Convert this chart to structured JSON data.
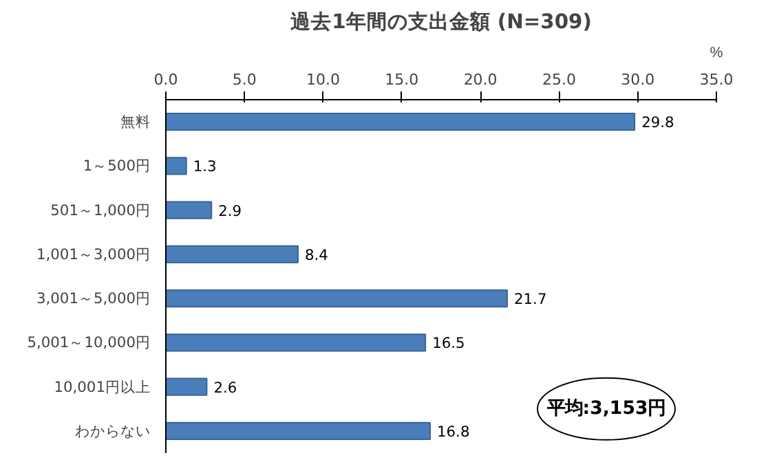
{
  "chart_data": {
    "type": "bar",
    "orientation": "horizontal",
    "title": "過去1年間の支出金額 (N=309)",
    "xlabel": "%",
    "categories": [
      "無料",
      "1～500円",
      "501～1,000円",
      "1,001～3,000円",
      "3,001～5,000円",
      "5,001～10,000円",
      "10,001円以上",
      "わからない"
    ],
    "values": [
      29.8,
      1.3,
      2.9,
      8.4,
      21.7,
      16.5,
      2.6,
      16.8
    ],
    "color": "#4a7ebb",
    "xlim": [
      0,
      35
    ],
    "xticks": [
      {
        "value": 0,
        "label": "0.0"
      },
      {
        "value": 5,
        "label": "5.0"
      },
      {
        "value": 10,
        "label": "10.0"
      },
      {
        "value": 15,
        "label": "15.0"
      },
      {
        "value": 20,
        "label": "20.0"
      },
      {
        "value": 25,
        "label": "25.0"
      },
      {
        "value": 30,
        "label": "30.0"
      },
      {
        "value": 35,
        "label": "35.0"
      }
    ],
    "data_labels": true,
    "grid": false,
    "annotations": [
      "平均:3,153円"
    ]
  }
}
